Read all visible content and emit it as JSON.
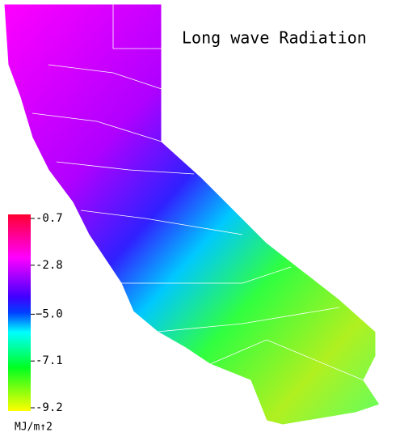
{
  "title": "Long wave Radiation",
  "colorbar": {
    "lim": [
      -9.2,
      -0.7
    ],
    "ticks": [
      -0.7,
      -2.8,
      {
        "value": -5,
        "label": "−5.0"
      },
      -7.1,
      -9.2
    ],
    "unit": "MJ/m↑2"
  }
}
